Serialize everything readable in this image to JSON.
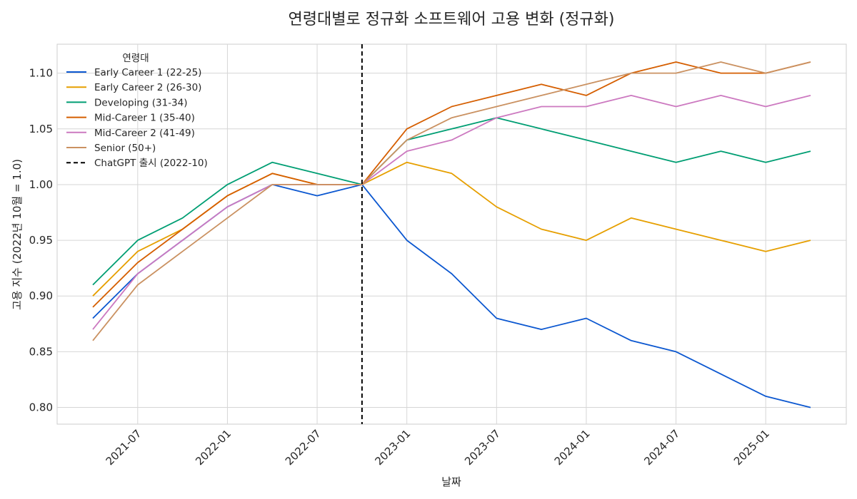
{
  "chart_data": {
    "type": "line",
    "title": "연령대별로 정규화 소프트웨어 고용 변화 (정규화)",
    "xlabel": "날짜",
    "ylabel": "고용 지수 (2022년 10월 = 1.0)",
    "ylim": [
      0.785,
      1.126
    ],
    "yticks": [
      0.8,
      0.85,
      0.9,
      0.95,
      1.0,
      1.05,
      1.1
    ],
    "xticks": [
      "2021-07",
      "2022-01",
      "2022-07",
      "2023-01",
      "2023-07",
      "2024-01",
      "2024-07",
      "2025-01"
    ],
    "x": [
      "2021-04",
      "2021-07",
      "2021-10",
      "2022-01",
      "2022-04",
      "2022-07",
      "2022-10",
      "2023-01",
      "2023-04",
      "2023-07",
      "2023-10",
      "2024-01",
      "2024-04",
      "2024-07",
      "2024-10",
      "2025-01",
      "2025-04"
    ],
    "grid": true,
    "legend": {
      "title": "연령대",
      "position": "top-left"
    },
    "reference_line": {
      "x": "2022-10",
      "label": "ChatGPT 출시 (2022-10)",
      "color": "#000000",
      "style": "dashed"
    },
    "series": [
      {
        "name": "Early Career 1 (22-25)",
        "color": "#0b57d0",
        "values": [
          0.88,
          0.92,
          0.95,
          0.98,
          1.0,
          0.99,
          1.0,
          0.95,
          0.92,
          0.88,
          0.87,
          0.88,
          0.86,
          0.85,
          0.83,
          0.81,
          0.8
        ]
      },
      {
        "name": "Early Career 2 (26-30)",
        "color": "#e69f00",
        "values": [
          0.9,
          0.94,
          0.96,
          0.99,
          1.01,
          1.0,
          1.0,
          1.02,
          1.01,
          0.98,
          0.96,
          0.95,
          0.97,
          0.96,
          0.95,
          0.94,
          0.95
        ]
      },
      {
        "name": "Developing (31-34)",
        "color": "#009e73",
        "values": [
          0.91,
          0.95,
          0.97,
          1.0,
          1.02,
          1.01,
          1.0,
          1.04,
          1.05,
          1.06,
          1.05,
          1.04,
          1.03,
          1.02,
          1.03,
          1.02,
          1.03
        ]
      },
      {
        "name": "Mid-Career 1 (35-40)",
        "color": "#d55e00",
        "values": [
          0.89,
          0.93,
          0.96,
          0.99,
          1.01,
          1.0,
          1.0,
          1.05,
          1.07,
          1.08,
          1.09,
          1.08,
          1.1,
          1.11,
          1.1,
          1.1,
          1.11
        ]
      },
      {
        "name": "Mid-Career 2 (41-49)",
        "color": "#cc79c0",
        "values": [
          0.87,
          0.92,
          0.95,
          0.98,
          1.0,
          1.0,
          1.0,
          1.03,
          1.04,
          1.06,
          1.07,
          1.07,
          1.08,
          1.07,
          1.08,
          1.07,
          1.08
        ]
      },
      {
        "name": "Senior (50+)",
        "color": "#ca9161",
        "values": [
          0.86,
          0.91,
          0.94,
          0.97,
          1.0,
          1.0,
          1.0,
          1.04,
          1.06,
          1.07,
          1.08,
          1.09,
          1.1,
          1.1,
          1.11,
          1.1,
          1.11
        ]
      }
    ]
  }
}
